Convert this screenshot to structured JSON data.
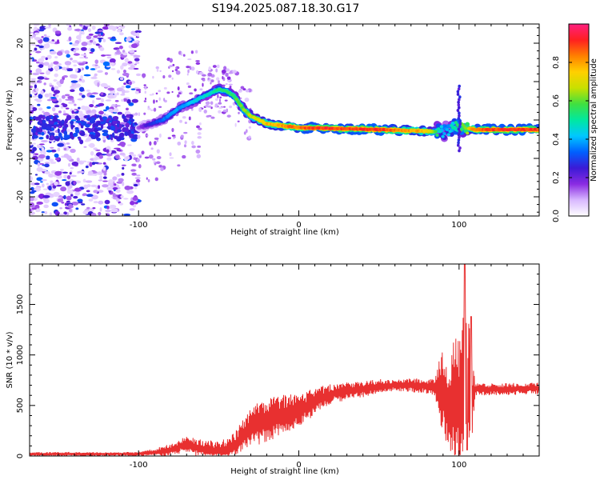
{
  "chart_data": [
    {
      "type": "heatmap",
      "title": "S194.2025.087.18.30.G17",
      "xlabel": "Height of straight line (km)",
      "ylabel": "Frequency (Hz)",
      "xlim": [
        -168,
        150
      ],
      "ylim": [
        -25,
        25
      ],
      "xticks": [
        -100,
        0,
        100
      ],
      "yticks": [
        -20,
        -10,
        0,
        10,
        20
      ],
      "grid": false,
      "colorbar": {
        "label": "Normalized spectral amplitude",
        "ticks": [
          0.0,
          0.2,
          0.4,
          0.6,
          0.8
        ],
        "range": [
          0,
          1
        ],
        "colors": [
          "#ffffff",
          "#d8b8ff",
          "#8a2be2",
          "#3b1ad6",
          "#0060ff",
          "#00c8ff",
          "#00e8a0",
          "#40e040",
          "#c8e000",
          "#ffd000",
          "#ff8000",
          "#ff2020",
          "#ff2080"
        ]
      },
      "ridge": {
        "x": [
          -100,
          -95,
          -90,
          -85,
          -80,
          -75,
          -70,
          -65,
          -60,
          -55,
          -50,
          -45,
          -40,
          -35,
          -30,
          -25,
          -20,
          -15,
          -10,
          -5,
          0,
          10,
          20,
          30,
          40,
          50,
          60,
          70,
          80,
          88,
          92,
          96,
          100,
          105,
          110,
          120,
          130,
          140,
          150
        ],
        "amp": [
          0.15,
          0.25,
          0.3,
          0.35,
          0.4,
          0.4,
          0.42,
          0.45,
          0.48,
          0.5,
          0.55,
          0.55,
          0.6,
          0.65,
          0.7,
          0.75,
          0.8,
          0.82,
          0.85,
          0.88,
          0.9,
          0.95,
          0.95,
          0.92,
          0.95,
          0.95,
          0.9,
          0.85,
          0.8,
          0.5,
          0.4,
          0.5,
          0.6,
          0.7,
          0.9,
          0.95,
          0.95,
          0.95,
          0.95
        ]
      }
    },
    {
      "type": "line",
      "xlabel": "Height of straight line (km)",
      "ylabel": "SNR (10 * v/v)",
      "xlim": [
        -168,
        150
      ],
      "ylim": [
        0,
        1900
      ],
      "xticks": [
        -100,
        0,
        100
      ],
      "yticks": [
        0,
        500,
        1000,
        1500
      ],
      "grid": false,
      "color": "#e83030",
      "envelope": {
        "x": [
          -168,
          -100,
          -90,
          -80,
          -75,
          -70,
          -65,
          -60,
          -55,
          -50,
          -45,
          -40,
          -35,
          -30,
          -25,
          -20,
          -15,
          -10,
          -5,
          0,
          5,
          10,
          15,
          20,
          25,
          30,
          40,
          50,
          60,
          70,
          80,
          85,
          88,
          90,
          92,
          94,
          96,
          98,
          100,
          102,
          104,
          106,
          108,
          110,
          115,
          120,
          130,
          140,
          150
        ],
        "y": [
          20,
          20,
          35,
          60,
          90,
          120,
          90,
          70,
          50,
          40,
          60,
          100,
          200,
          280,
          320,
          350,
          380,
          410,
          430,
          460,
          490,
          540,
          580,
          610,
          630,
          640,
          660,
          690,
          700,
          700,
          690,
          680,
          660,
          620,
          520,
          480,
          600,
          550,
          500,
          600,
          800,
          700,
          550,
          660,
          660,
          660,
          660,
          670,
          670
        ]
      },
      "ripple": {
        "x": [
          -168,
          -100,
          -80,
          -40,
          -30,
          -20,
          -10,
          0,
          20,
          60,
          85,
          88,
          92,
          96,
          100,
          104,
          108,
          110,
          150
        ],
        "y": [
          20,
          20,
          60,
          130,
          200,
          220,
          200,
          170,
          100,
          60,
          80,
          350,
          500,
          650,
          700,
          800,
          500,
          60,
          60
        ]
      },
      "spikes": [
        {
          "x": 103.5,
          "y": 1900
        },
        {
          "x": 105,
          "y": 60
        },
        {
          "x": 107.5,
          "y": 1380
        }
      ]
    }
  ]
}
